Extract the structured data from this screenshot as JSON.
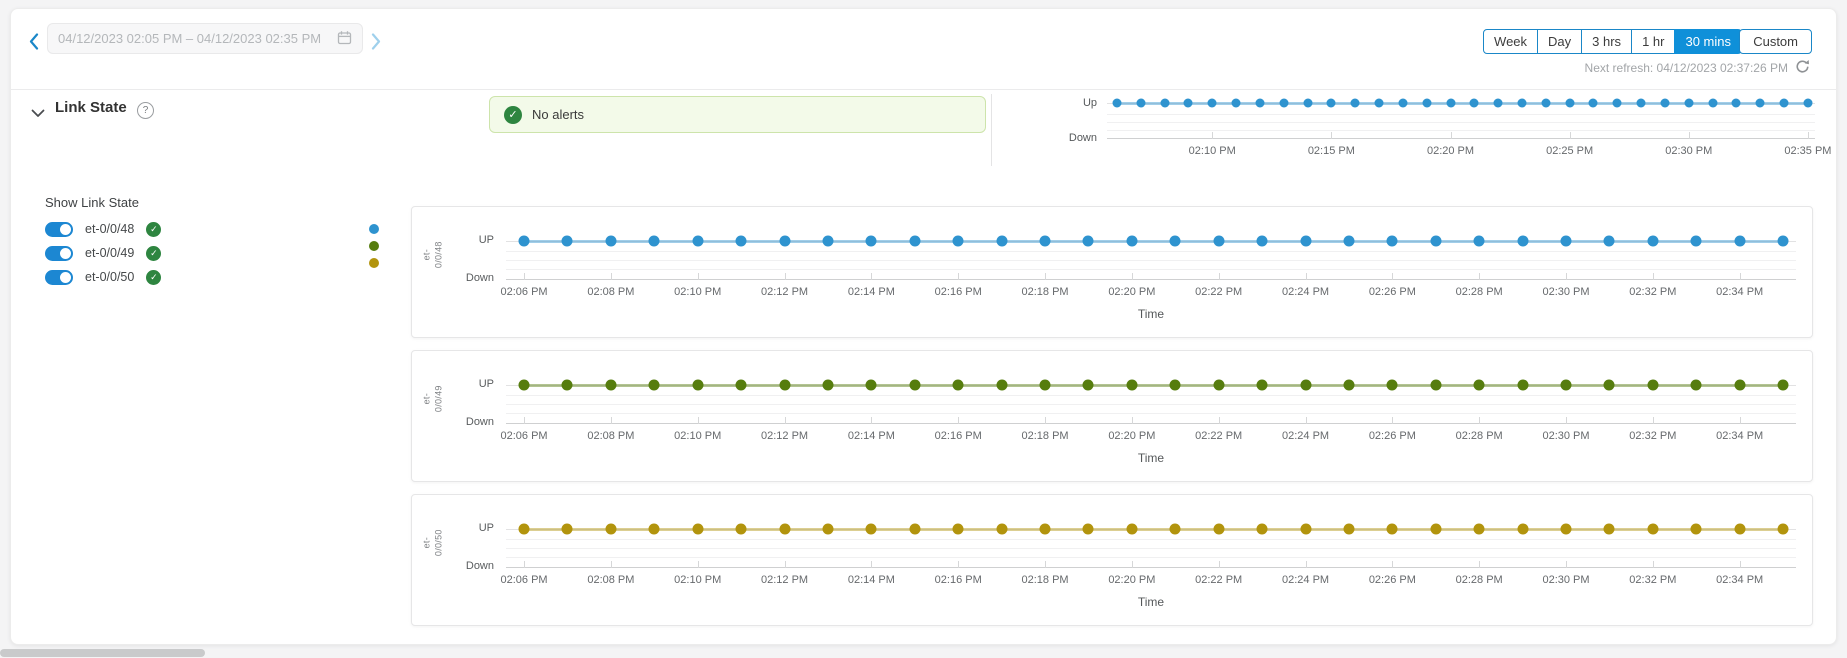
{
  "topbar": {
    "date_range_value": "04/12/2023 02:05 PM – 04/12/2023 02:35 PM",
    "range_buttons": [
      "Week",
      "Day",
      "3 hrs",
      "1 hr",
      "30 mins"
    ],
    "active_range": "30 mins",
    "custom_button_label": "Custom",
    "next_refresh_text": "Next refresh: 04/12/2023 02:37:26 PM"
  },
  "section": {
    "title": "Link State",
    "help_glyph": "?",
    "alert_banner_text": "No alerts"
  },
  "sidebar": {
    "title": "Show Link State",
    "items": [
      {
        "label": "et-0/0/48",
        "toggle_on": true,
        "status": "ok",
        "color": "#2e93cf"
      },
      {
        "label": "et-0/0/49",
        "toggle_on": true,
        "status": "ok",
        "color": "#567d0e"
      },
      {
        "label": "et-0/0/50",
        "toggle_on": true,
        "status": "ok",
        "color": "#b2940d"
      }
    ]
  },
  "colors": {
    "accent_blue": "#1a87c8",
    "active_range_bg": "#0f90d9",
    "success_green": "#2e8540",
    "alert_banner_bg": "#f3fae9",
    "alert_banner_border": "#cde4ab",
    "series_blue": "#2e93cf",
    "series_green": "#567d0e",
    "series_gold": "#b2940d"
  },
  "chart_data": {
    "type": "line",
    "x": [
      "02:06 PM",
      "02:07 PM",
      "02:08 PM",
      "02:09 PM",
      "02:10 PM",
      "02:11 PM",
      "02:12 PM",
      "02:13 PM",
      "02:14 PM",
      "02:15 PM",
      "02:16 PM",
      "02:17 PM",
      "02:18 PM",
      "02:19 PM",
      "02:20 PM",
      "02:21 PM",
      "02:22 PM",
      "02:23 PM",
      "02:24 PM",
      "02:25 PM",
      "02:26 PM",
      "02:27 PM",
      "02:28 PM",
      "02:29 PM",
      "02:30 PM",
      "02:31 PM",
      "02:32 PM",
      "02:33 PM",
      "02:34 PM",
      "02:35 PM"
    ],
    "y_levels": [
      "Down",
      "Up"
    ],
    "charts": [
      {
        "type": "line",
        "name": "link-state-overview",
        "yticks": [
          "Up",
          "Down"
        ],
        "xticks": [
          "02:10 PM",
          "02:15 PM",
          "02:20 PM",
          "02:25 PM",
          "02:30 PM",
          "02:35 PM"
        ],
        "xlabel": "",
        "color": "#2e93cf",
        "values": [
          "Up",
          "Up",
          "Up",
          "Up",
          "Up",
          "Up",
          "Up",
          "Up",
          "Up",
          "Up",
          "Up",
          "Up",
          "Up",
          "Up",
          "Up",
          "Up",
          "Up",
          "Up",
          "Up",
          "Up",
          "Up",
          "Up",
          "Up",
          "Up",
          "Up",
          "Up",
          "Up",
          "Up",
          "Up",
          "Up"
        ]
      },
      {
        "type": "line",
        "name": "et-0/0/48",
        "axis_label": "et-0/0/48",
        "axis_label_lines": [
          "et-",
          "0/0/48"
        ],
        "yticks": [
          "UP",
          "Down"
        ],
        "xticks": [
          "02:06 PM",
          "02:08 PM",
          "02:10 PM",
          "02:12 PM",
          "02:14 PM",
          "02:16 PM",
          "02:18 PM",
          "02:20 PM",
          "02:22 PM",
          "02:24 PM",
          "02:26 PM",
          "02:28 PM",
          "02:30 PM",
          "02:32 PM",
          "02:34 PM"
        ],
        "xlabel": "Time",
        "color": "#2e93cf",
        "values": [
          "Up",
          "Up",
          "Up",
          "Up",
          "Up",
          "Up",
          "Up",
          "Up",
          "Up",
          "Up",
          "Up",
          "Up",
          "Up",
          "Up",
          "Up",
          "Up",
          "Up",
          "Up",
          "Up",
          "Up",
          "Up",
          "Up",
          "Up",
          "Up",
          "Up",
          "Up",
          "Up",
          "Up",
          "Up",
          "Up"
        ]
      },
      {
        "type": "line",
        "name": "et-0/0/49",
        "axis_label": "et-0/0/49",
        "axis_label_lines": [
          "et-",
          "0/0/49"
        ],
        "yticks": [
          "UP",
          "Down"
        ],
        "xticks": [
          "02:06 PM",
          "02:08 PM",
          "02:10 PM",
          "02:12 PM",
          "02:14 PM",
          "02:16 PM",
          "02:18 PM",
          "02:20 PM",
          "02:22 PM",
          "02:24 PM",
          "02:26 PM",
          "02:28 PM",
          "02:30 PM",
          "02:32 PM",
          "02:34 PM"
        ],
        "xlabel": "Time",
        "color": "#567d0e",
        "values": [
          "Up",
          "Up",
          "Up",
          "Up",
          "Up",
          "Up",
          "Up",
          "Up",
          "Up",
          "Up",
          "Up",
          "Up",
          "Up",
          "Up",
          "Up",
          "Up",
          "Up",
          "Up",
          "Up",
          "Up",
          "Up",
          "Up",
          "Up",
          "Up",
          "Up",
          "Up",
          "Up",
          "Up",
          "Up",
          "Up"
        ]
      },
      {
        "type": "line",
        "name": "et-0/0/50",
        "axis_label": "et-0/0/50",
        "axis_label_lines": [
          "et-",
          "0/0/50"
        ],
        "yticks": [
          "UP",
          "Down"
        ],
        "xticks": [
          "02:06 PM",
          "02:08 PM",
          "02:10 PM",
          "02:12 PM",
          "02:14 PM",
          "02:16 PM",
          "02:18 PM",
          "02:20 PM",
          "02:22 PM",
          "02:24 PM",
          "02:26 PM",
          "02:28 PM",
          "02:30 PM",
          "02:32 PM",
          "02:34 PM"
        ],
        "xlabel": "Time",
        "color": "#b2940d",
        "values": [
          "Up",
          "Up",
          "Up",
          "Up",
          "Up",
          "Up",
          "Up",
          "Up",
          "Up",
          "Up",
          "Up",
          "Up",
          "Up",
          "Up",
          "Up",
          "Up",
          "Up",
          "Up",
          "Up",
          "Up",
          "Up",
          "Up",
          "Up",
          "Up",
          "Up",
          "Up",
          "Up",
          "Up",
          "Up",
          "Up"
        ]
      }
    ]
  }
}
